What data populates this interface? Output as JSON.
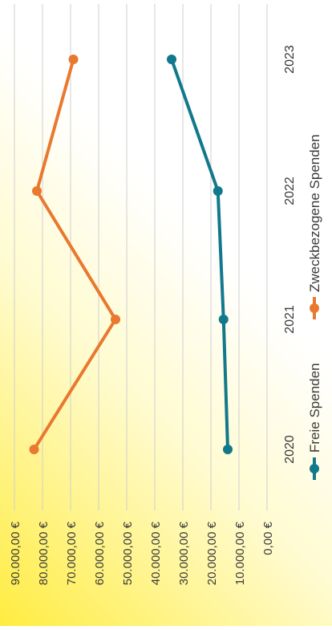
{
  "chart_data": {
    "type": "line",
    "categories": [
      "2020",
      "2021",
      "2022",
      "2023"
    ],
    "series": [
      {
        "name": "Freie Spenden",
        "values": [
          14000,
          15500,
          17500,
          34000
        ],
        "color": "#12788c"
      },
      {
        "name": "Zweckbezogene Spenden",
        "values": [
          83000,
          54000,
          82000,
          69000
        ],
        "color": "#e8792f"
      }
    ],
    "y_ticks": [
      "0,00 €",
      "10.000,00 €",
      "20.000,00 €",
      "30.000,00 €",
      "40.000,00 €",
      "50.000,00 €",
      "60.000,00 €",
      "70.000,00 €",
      "80.000,00 €",
      "90.000,00 €"
    ],
    "ylim": [
      0,
      90000
    ],
    "grid": true,
    "legend_position": "bottom",
    "orientation": "rotated-90-clockwise"
  }
}
